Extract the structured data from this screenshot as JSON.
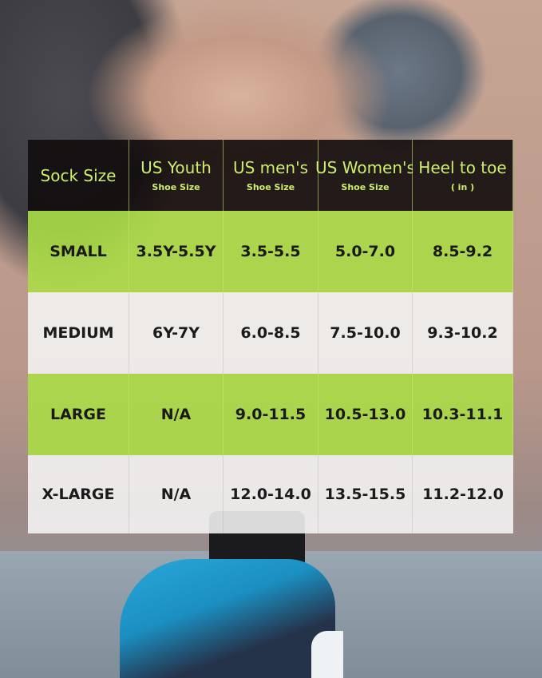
{
  "colors": {
    "header_bg": "#140c0c",
    "header_text": "#cdee6e",
    "green_row": "#aadc46",
    "light_row": "#f5f5f5"
  },
  "headers": [
    {
      "title": "Sock Size",
      "sub": ""
    },
    {
      "title": "US Youth",
      "sub": "Shoe Size"
    },
    {
      "title": "US men's",
      "sub": "Shoe Size"
    },
    {
      "title": "US Women's",
      "sub": "Shoe Size"
    },
    {
      "title": "Heel to toe",
      "sub": "( in )"
    }
  ],
  "rows": [
    [
      "SMALL",
      "3.5Y-5.5Y",
      "3.5-5.5",
      "5.0-7.0",
      "8.5-9.2"
    ],
    [
      "MEDIUM",
      "6Y-7Y",
      "6.0-8.5",
      "7.5-10.0",
      "9.3-10.2"
    ],
    [
      "LARGE",
      "N/A",
      "9.0-11.5",
      "10.5-13.0",
      "10.3-11.1"
    ],
    [
      "X-LARGE",
      "N/A",
      "12.0-14.0",
      "13.5-15.5",
      "11.2-12.0"
    ]
  ]
}
